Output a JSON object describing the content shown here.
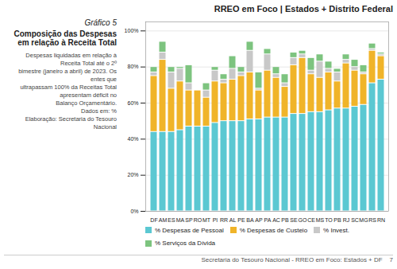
{
  "chart_data": {
    "type": "bar",
    "stacked": true,
    "title": "Gráfico 5",
    "subtitle": "Composição das Despesas em relação à Receita Total",
    "annotations": [
      "RREO em Foco | Estados + Distrito Federal",
      "Despesas liquidadas em relação à Receita Total até o 2º\nbimestre (janeiro a abril) de 2023. Os entes que\nultrapassam 100% da Receitas Total apresentam déficit no\nBalanço Orçamentário.\nDados em: %\nElaboração: Secretaria do Tesouro Nacional",
      "Secretaria do Tesouro Nacional - RREO em Foco: Estados + DF    7"
    ],
    "categories": [
      "DF",
      "AM",
      "ES",
      "MA",
      "SP",
      "RO",
      "MT",
      "PI",
      "RR",
      "AL",
      "PE",
      "BA",
      "AP",
      "PA",
      "AC",
      "PB",
      "SE",
      "GO",
      "CE",
      "MS",
      "TO",
      "PB",
      "RJ",
      "SC",
      "MG",
      "RS",
      "RN"
    ],
    "series": [
      {
        "name": "% Despesas de Pessoal",
        "color": "#5bc8d2",
        "values": [
          44,
          44,
          44,
          45,
          47,
          47,
          47,
          49,
          50,
          50,
          50,
          51,
          51,
          52,
          52,
          52,
          54,
          54,
          55,
          55,
          56,
          57,
          57,
          58,
          59,
          71,
          73
        ]
      },
      {
        "name": "% Despesas de Custeio",
        "color": "#f0b429",
        "values": [
          31,
          40,
          24,
          27,
          20,
          20,
          16,
          23,
          21,
          23,
          25,
          26,
          16,
          26,
          22,
          17,
          27,
          31,
          21,
          19,
          21,
          15,
          25,
          20,
          17,
          18,
          13
        ]
      },
      {
        "name": "% Invest.",
        "color": "#c8c8c8",
        "values": [
          2,
          4,
          9,
          7,
          4,
          0,
          4,
          6,
          2,
          6,
          2,
          12,
          1,
          9,
          2,
          2,
          4,
          2,
          2,
          9,
          2,
          5,
          2,
          2,
          1,
          1,
          1
        ]
      },
      {
        "name": "% Serviços da Dívida",
        "color": "#7dc47f",
        "values": [
          3,
          6,
          3,
          1,
          10,
          0,
          4,
          2,
          3,
          7,
          3,
          5,
          9,
          3,
          4,
          5,
          3,
          2,
          7,
          4,
          4,
          2,
          3,
          4,
          4,
          3,
          1
        ]
      }
    ],
    "ylim": [
      0,
      105
    ],
    "yticks": [
      {
        "value": 0,
        "label": "0%"
      },
      {
        "value": 20,
        "label": "20%"
      },
      {
        "value": 40,
        "label": "40%"
      },
      {
        "value": 60,
        "label": "60%"
      },
      {
        "value": 80,
        "label": "80%"
      },
      {
        "value": 100,
        "label": "100%"
      }
    ],
    "grid": true,
    "legend": "bottom"
  }
}
